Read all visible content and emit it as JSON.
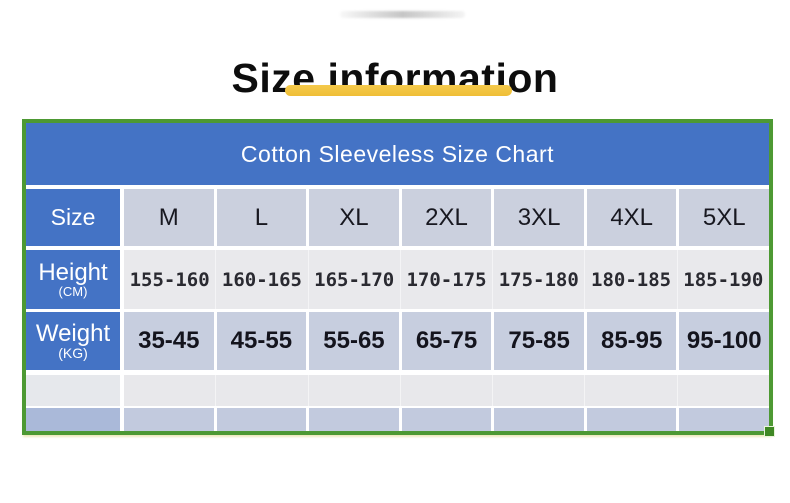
{
  "page": {
    "title": "Size information"
  },
  "decor": {
    "underline_color": "#f0c040",
    "border_color": "#4d9933",
    "header_blue": "#4473c5"
  },
  "table": {
    "title": "Cotton Sleeveless Size Chart",
    "size_label": "Size",
    "height_label": "Height",
    "height_unit": "(CM)",
    "weight_label": "Weight",
    "weight_unit": "(KG)"
  },
  "chart_data": {
    "type": "table",
    "title": "Cotton Sleeveless Size Chart",
    "columns": [
      "Size",
      "M",
      "L",
      "XL",
      "2XL",
      "3XL",
      "4XL",
      "5XL"
    ],
    "rows": [
      [
        "Height (CM)",
        "155-160",
        "160-165",
        "165-170",
        "170-175",
        "175-180",
        "180-185",
        "185-190"
      ],
      [
        "Weight (KG)",
        "35-45",
        "45-55",
        "55-65",
        "65-75",
        "75-85",
        "85-95",
        "95-100"
      ]
    ]
  }
}
